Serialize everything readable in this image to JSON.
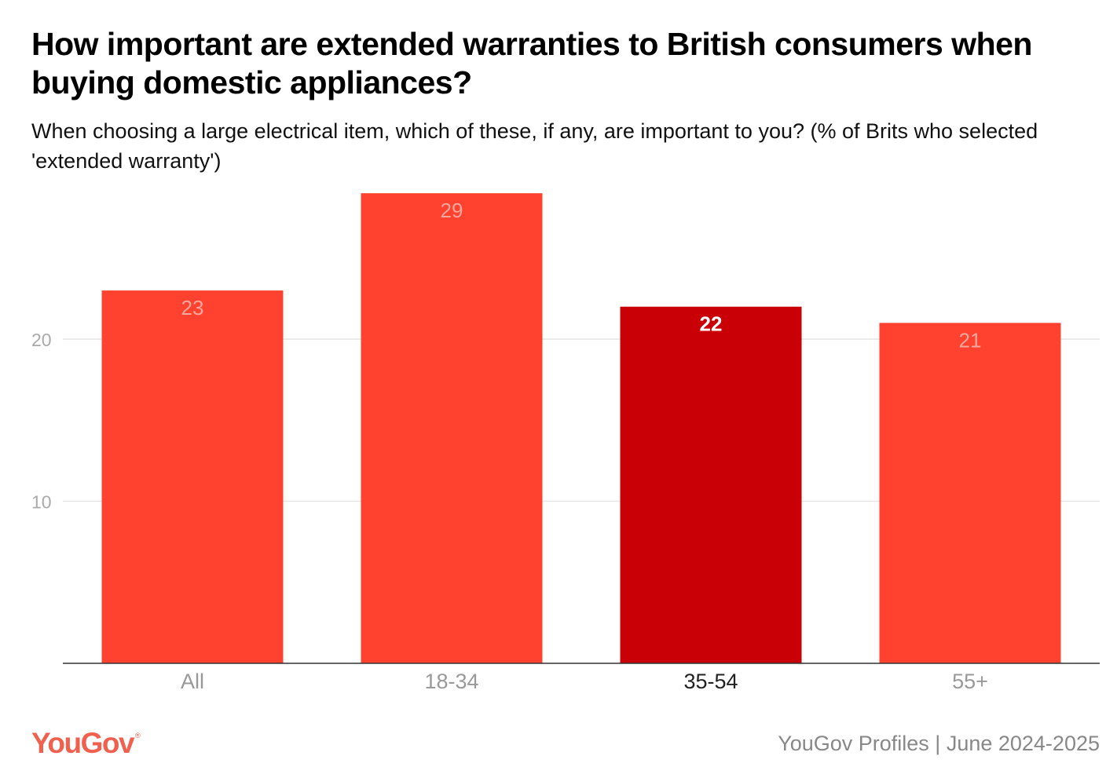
{
  "title": "How important are extended warranties to British consumers when buying domestic appliances?",
  "subtitle": "When choosing a large electrical item, which of these, if any, are important to you? (% of Brits who selected 'extended warranty')",
  "logo": "YouGov",
  "source": "YouGov Profiles | June 2024-2025",
  "colors": {
    "bar": "#ff4230",
    "highlight": "#c90005",
    "label": "#f7a79c",
    "highlight_label": "#ffffff",
    "grid": "#e6e6e6",
    "axis": "#333333"
  },
  "chart_data": {
    "type": "bar",
    "categories": [
      "All",
      "18-34",
      "35-54",
      "55+"
    ],
    "values": [
      23,
      29,
      22,
      21
    ],
    "highlighted": "35-54",
    "yticks": [
      10,
      20
    ],
    "ylim": [
      0,
      29
    ],
    "grid": true,
    "xlabel": "",
    "ylabel": ""
  }
}
